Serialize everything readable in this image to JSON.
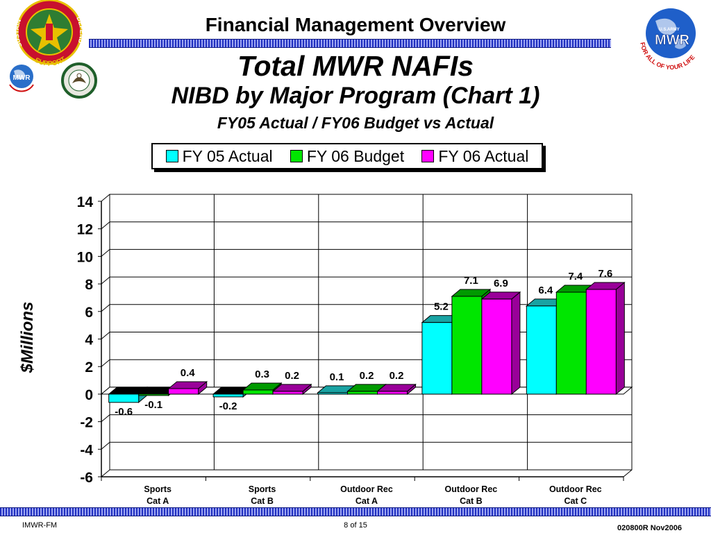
{
  "header": {
    "title": "Financial Management Overview"
  },
  "titles": {
    "main": "Total MWR NAFIs",
    "sub": "NIBD by Major Program (Chart 1)",
    "subsub": "FY05 Actual / FY06 Budget vs Actual"
  },
  "logos": {
    "left_top": {
      "icon": "army-emblem-icon",
      "text_left": "SUSTAIN",
      "text_center": "SUPPORT",
      "text_right": "DEFEND"
    },
    "left_small_1": {
      "icon": "mwr-globe-icon",
      "text": "MWR"
    },
    "left_small_2": {
      "icon": "eagle-seal-icon"
    },
    "right_top": {
      "icon": "mwr-globe-icon",
      "text_top": "U.S.ARMY",
      "text": "MWR",
      "text_bottom": "FOR ALL OF YOUR LIFE"
    }
  },
  "chart_data": {
    "type": "bar",
    "categories": [
      "Sports Cat A",
      "Sports Cat B",
      "Outdoor Rec Cat A",
      "Outdoor Rec Cat  B",
      "Outdoor Rec Cat C"
    ],
    "category_lines": [
      [
        "Sports",
        "Cat A"
      ],
      [
        "Sports",
        "Cat B"
      ],
      [
        "Outdoor Rec",
        "Cat A"
      ],
      [
        "Outdoor Rec",
        "Cat  B"
      ],
      [
        "Outdoor Rec",
        "Cat C"
      ]
    ],
    "series": [
      {
        "name": "FY 05 Actual",
        "color": "#00ffff",
        "dark": "#19a3a3",
        "values": [
          -0.6,
          -0.2,
          0.1,
          5.2,
          6.4
        ]
      },
      {
        "name": "FY 06 Budget",
        "color": "#00e600",
        "dark": "#009a00",
        "values": [
          -0.1,
          0.3,
          0.2,
          7.1,
          7.4
        ]
      },
      {
        "name": "FY 06 Actual",
        "color": "#ff00ff",
        "dark": "#990099",
        "values": [
          0.4,
          0.2,
          0.2,
          6.9,
          7.6
        ]
      }
    ],
    "value_labels": [
      [
        "-0.6",
        "-0.2",
        "0.1",
        "5.2",
        "6.4"
      ],
      [
        "-0.1",
        "0.3",
        "0.2",
        "7.1",
        "7.4"
      ],
      [
        "0.4",
        "0.2",
        "0.2",
        "6.9",
        "7.6"
      ]
    ],
    "ylabel": "$Millions",
    "xlabel": "",
    "ylim": [
      -6,
      14
    ],
    "yticks": [
      "14",
      "12",
      "10",
      "8",
      "6",
      "4",
      "2",
      "0",
      "-2",
      "-4",
      "-6"
    ],
    "grid": true,
    "legend": "top"
  },
  "footer": {
    "left": "IMWR-FM",
    "center": "8 of 15",
    "right": "020800R Nov2006"
  }
}
